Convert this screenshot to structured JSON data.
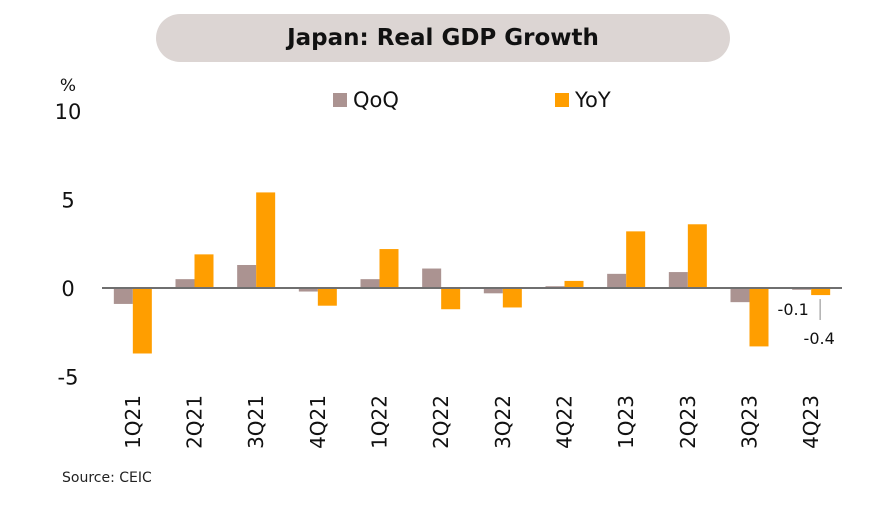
{
  "chart_data": {
    "type": "bar",
    "title": "Japan: Real GDP Growth",
    "ylabel": "%",
    "xlabel": "",
    "ylim": [
      -5,
      10
    ],
    "yticks": [
      10,
      5,
      0,
      -5
    ],
    "categories": [
      "1Q21",
      "2Q21",
      "3Q21",
      "4Q21",
      "1Q22",
      "2Q22",
      "3Q22",
      "4Q22",
      "1Q23",
      "2Q23",
      "3Q23",
      "4Q23"
    ],
    "series": [
      {
        "name": "QoQ",
        "color": "#ab9391",
        "values": [
          -0.9,
          0.5,
          1.3,
          -0.2,
          0.5,
          1.1,
          -0.3,
          0.1,
          0.8,
          0.9,
          -0.8,
          -0.1
        ]
      },
      {
        "name": "YoY",
        "color": "#ff9e00",
        "values": [
          -3.7,
          1.9,
          5.4,
          -1.0,
          2.2,
          -1.2,
          -1.1,
          0.4,
          3.2,
          3.6,
          -3.3,
          -0.4
        ]
      }
    ],
    "data_labels": [
      {
        "series": "QoQ",
        "category": "4Q23",
        "text": "-0.1"
      },
      {
        "series": "YoY",
        "category": "4Q23",
        "text": "-0.4"
      }
    ],
    "legend": {
      "placement": "top-center",
      "entries": [
        "QoQ",
        "YoY"
      ]
    },
    "grid": false,
    "x_tick_rotation": "vertical",
    "source": "Source: CEIC"
  }
}
